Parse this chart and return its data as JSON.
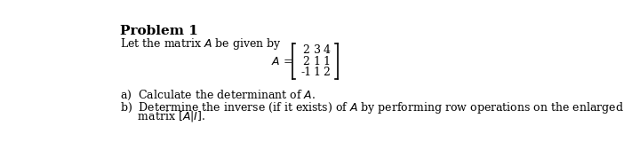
{
  "title": "Problem 1",
  "intro_text": "Let the matrix $A$ be given by",
  "matrix_label": "A = ",
  "matrix_row1": "2   3   4",
  "matrix_row2": "2   1   1",
  "matrix_row3": "-1   1   2",
  "part_a": "a)  Calculate the determinant of $A$.",
  "part_b_line1": "b)  Determine the inverse (if it exists) of $A$ by performing row operations on the enlarged",
  "part_b_line2": "     matrix $[A|I]$.",
  "bg_color": "#ffffff",
  "text_color": "#000000",
  "font_size_title": 11,
  "font_size_body": 9,
  "font_size_matrix": 9
}
